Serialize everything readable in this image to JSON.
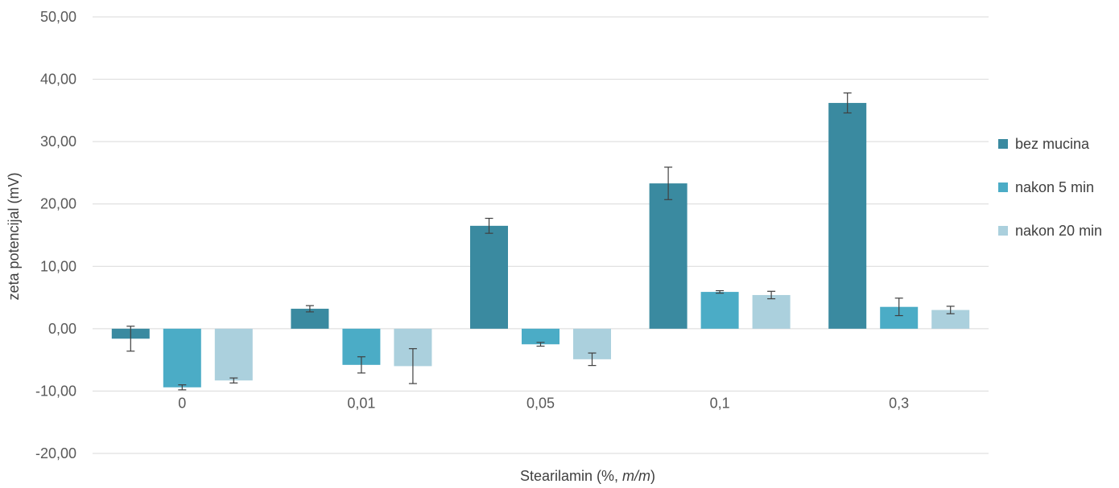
{
  "chart_data": {
    "type": "bar",
    "title": "",
    "xlabel_parts": [
      "Stearilamin (%, ",
      "m/m",
      ")"
    ],
    "ylabel": "zeta potencijal (mV)",
    "ylim": [
      -20,
      50
    ],
    "y_ticks": [
      "-20,00",
      "-10,00",
      "0,00",
      "10,00",
      "20,00",
      "30,00",
      "40,00",
      "50,00"
    ],
    "y_tick_values": [
      -20,
      -10,
      0,
      10,
      20,
      30,
      40,
      50
    ],
    "categories": [
      "0",
      "0,01",
      "0,05",
      "0,1",
      "0,3"
    ],
    "grid": true,
    "legend_position": "right",
    "series": [
      {
        "name": "bez mucina",
        "color": "#3a8aa0",
        "values": [
          -1.6,
          3.2,
          16.5,
          23.3,
          36.2
        ],
        "errors": [
          2.0,
          0.5,
          1.2,
          2.6,
          1.6
        ]
      },
      {
        "name": "nakon 5 min",
        "color": "#4bacc6",
        "values": [
          -9.4,
          -5.8,
          -2.5,
          5.9,
          3.5
        ],
        "errors": [
          0.4,
          1.3,
          0.3,
          0.2,
          1.4
        ]
      },
      {
        "name": "nakon 20 min",
        "color": "#abd0dd",
        "values": [
          -8.3,
          -6.0,
          -4.9,
          5.4,
          3.0
        ],
        "errors": [
          0.4,
          2.8,
          1.0,
          0.6,
          0.6
        ]
      }
    ]
  }
}
